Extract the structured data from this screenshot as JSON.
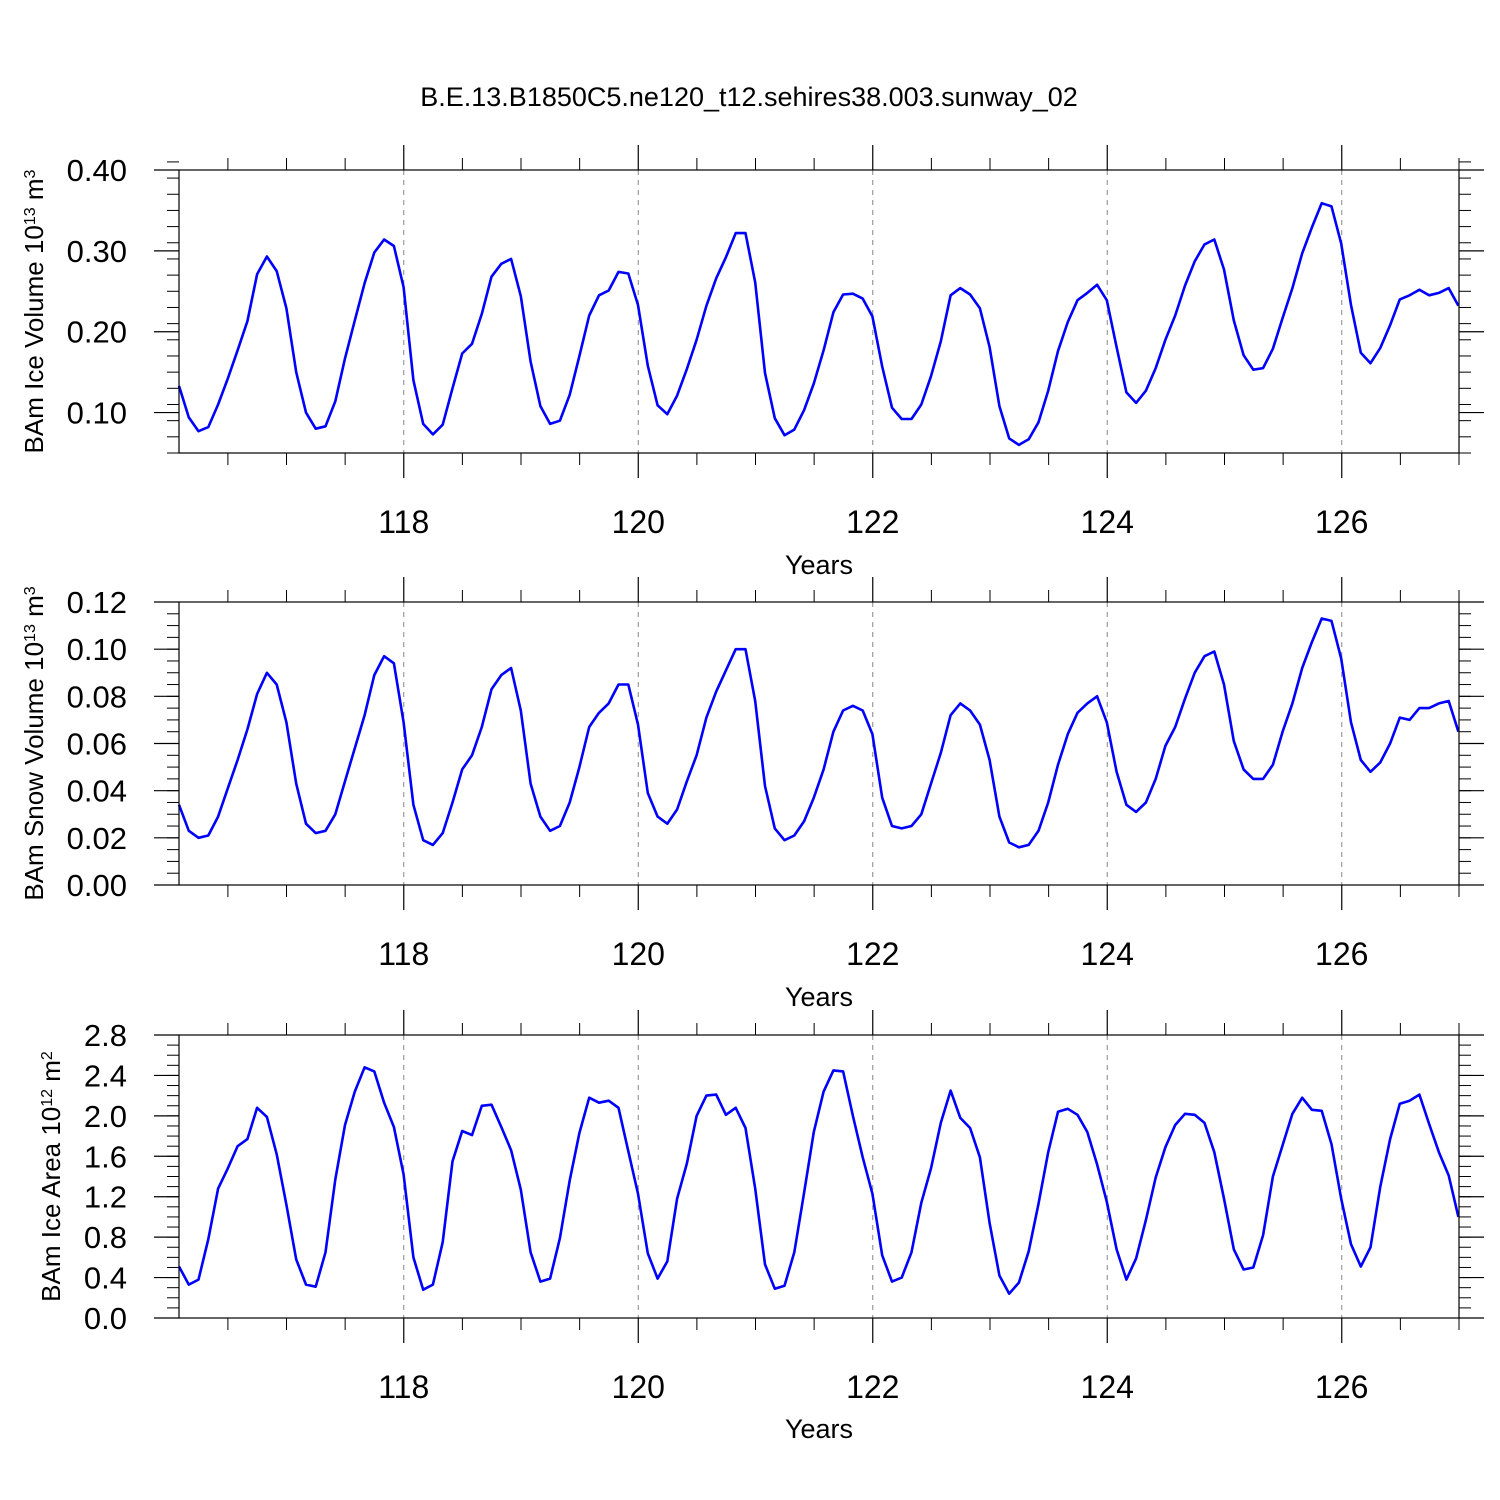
{
  "figure": {
    "title": "B.E.13.B1850C5.ne120_t12.sehires38.003.sunway_02"
  },
  "style": {
    "line_color": "#0000ff",
    "axis_color": "#000000",
    "grid_color": "#888888"
  },
  "chart_data": [
    {
      "type": "line",
      "id": "ice-volume",
      "title": "",
      "xlabel": "Years",
      "ylabel": "BAm Ice Volume 10",
      "ylabel_sup": "13",
      "ylabel_unit": " m",
      "ylabel_unit_sup": "3",
      "xlim": [
        116.083,
        127.0
      ],
      "ylim": [
        0.05,
        0.4
      ],
      "xticks": [
        118,
        120,
        122,
        124,
        126
      ],
      "xtick_labels": [
        "118",
        "120",
        "122",
        "124",
        "126"
      ],
      "yticks": [
        0.1,
        0.2,
        0.3,
        0.4
      ],
      "ytick_labels": [
        "0.10",
        "0.20",
        "0.30",
        "0.40"
      ],
      "y_minor_step": 0.02,
      "grid": "vertical dashed at major x ticks",
      "series": [
        {
          "x_start": 116.083,
          "x_step": 0.0833,
          "values": [
            0.133,
            0.094,
            0.077,
            0.082,
            0.11,
            0.142,
            0.177,
            0.213,
            0.271,
            0.293,
            0.275,
            0.229,
            0.15,
            0.1,
            0.08,
            0.083,
            0.114,
            0.167,
            0.214,
            0.26,
            0.298,
            0.314,
            0.306,
            0.255,
            0.14,
            0.086,
            0.073,
            0.085,
            0.13,
            0.173,
            0.185,
            0.222,
            0.268,
            0.284,
            0.29,
            0.244,
            0.163,
            0.108,
            0.086,
            0.09,
            0.122,
            0.17,
            0.22,
            0.245,
            0.251,
            0.274,
            0.272,
            0.233,
            0.158,
            0.109,
            0.098,
            0.121,
            0.154,
            0.19,
            0.232,
            0.266,
            0.292,
            0.322,
            0.322,
            0.261,
            0.149,
            0.093,
            0.072,
            0.079,
            0.103,
            0.136,
            0.177,
            0.224,
            0.246,
            0.247,
            0.241,
            0.219,
            0.157,
            0.106,
            0.092,
            0.092,
            0.11,
            0.145,
            0.188,
            0.245,
            0.254,
            0.246,
            0.229,
            0.181,
            0.108,
            0.068,
            0.06,
            0.067,
            0.088,
            0.127,
            0.176,
            0.212,
            0.239,
            0.248,
            0.258,
            0.239,
            0.181,
            0.125,
            0.112,
            0.127,
            0.155,
            0.19,
            0.22,
            0.257,
            0.287,
            0.308,
            0.314,
            0.277,
            0.214,
            0.171,
            0.153,
            0.155,
            0.179,
            0.217,
            0.254,
            0.297,
            0.329,
            0.359,
            0.355,
            0.309,
            0.233,
            0.174,
            0.161,
            0.18,
            0.208,
            0.24,
            0.245,
            0.252,
            0.245,
            0.248,
            0.254,
            0.232
          ]
        }
      ]
    },
    {
      "type": "line",
      "id": "snow-volume",
      "title": "",
      "xlabel": "Years",
      "ylabel": "BAm Snow Volume 10",
      "ylabel_sup": "13",
      "ylabel_unit": " m",
      "ylabel_unit_sup": "3",
      "xlim": [
        116.083,
        127.0
      ],
      "ylim": [
        0.0,
        0.12
      ],
      "xticks": [
        118,
        120,
        122,
        124,
        126
      ],
      "xtick_labels": [
        "118",
        "120",
        "122",
        "124",
        "126"
      ],
      "yticks": [
        0.0,
        0.02,
        0.04,
        0.06,
        0.08,
        0.1,
        0.12
      ],
      "ytick_labels": [
        "0.00",
        "0.02",
        "0.04",
        "0.06",
        "0.08",
        "0.10",
        "0.12"
      ],
      "y_minor_step": 0.005,
      "grid": "vertical dashed at major x ticks",
      "series": [
        {
          "x_start": 116.083,
          "x_step": 0.0833,
          "values": [
            0.034,
            0.023,
            0.02,
            0.021,
            0.029,
            0.041,
            0.053,
            0.066,
            0.081,
            0.09,
            0.085,
            0.069,
            0.043,
            0.026,
            0.022,
            0.023,
            0.03,
            0.044,
            0.058,
            0.072,
            0.089,
            0.097,
            0.094,
            0.069,
            0.034,
            0.019,
            0.017,
            0.022,
            0.035,
            0.049,
            0.055,
            0.067,
            0.083,
            0.089,
            0.092,
            0.074,
            0.043,
            0.029,
            0.023,
            0.025,
            0.035,
            0.05,
            0.067,
            0.073,
            0.077,
            0.085,
            0.085,
            0.068,
            0.039,
            0.029,
            0.026,
            0.032,
            0.044,
            0.055,
            0.071,
            0.082,
            0.091,
            0.1,
            0.1,
            0.078,
            0.042,
            0.024,
            0.019,
            0.021,
            0.027,
            0.037,
            0.049,
            0.065,
            0.074,
            0.076,
            0.074,
            0.064,
            0.037,
            0.025,
            0.024,
            0.025,
            0.03,
            0.043,
            0.056,
            0.072,
            0.077,
            0.074,
            0.068,
            0.053,
            0.029,
            0.018,
            0.016,
            0.017,
            0.023,
            0.035,
            0.051,
            0.064,
            0.073,
            0.077,
            0.08,
            0.069,
            0.048,
            0.034,
            0.031,
            0.035,
            0.045,
            0.059,
            0.067,
            0.079,
            0.09,
            0.097,
            0.099,
            0.085,
            0.061,
            0.049,
            0.045,
            0.045,
            0.051,
            0.065,
            0.077,
            0.092,
            0.103,
            0.113,
            0.112,
            0.096,
            0.069,
            0.053,
            0.048,
            0.052,
            0.06,
            0.071,
            0.07,
            0.075,
            0.075,
            0.077,
            0.078,
            0.065
          ]
        }
      ]
    },
    {
      "type": "line",
      "id": "ice-area",
      "title": "",
      "xlabel": "Years",
      "ylabel": "BAm Ice Area 10",
      "ylabel_sup": "12",
      "ylabel_unit": " m",
      "ylabel_unit_sup": "2",
      "xlim": [
        116.083,
        127.0
      ],
      "ylim": [
        0.0,
        2.8
      ],
      "xticks": [
        118,
        120,
        122,
        124,
        126
      ],
      "xtick_labels": [
        "118",
        "120",
        "122",
        "124",
        "126"
      ],
      "yticks": [
        0.0,
        0.4,
        0.8,
        1.2,
        1.6,
        2.0,
        2.4,
        2.8
      ],
      "ytick_labels": [
        "0.0",
        "0.4",
        "0.8",
        "1.2",
        "1.6",
        "2.0",
        "2.4",
        "2.8"
      ],
      "y_minor_step": 0.1,
      "grid": "vertical dashed at major x ticks",
      "series": [
        {
          "x_start": 116.083,
          "x_step": 0.0833,
          "values": [
            0.51,
            0.33,
            0.38,
            0.78,
            1.28,
            1.48,
            1.7,
            1.77,
            2.08,
            1.99,
            1.62,
            1.12,
            0.58,
            0.33,
            0.31,
            0.65,
            1.37,
            1.91,
            2.24,
            2.48,
            2.44,
            2.13,
            1.89,
            1.42,
            0.6,
            0.28,
            0.33,
            0.75,
            1.55,
            1.85,
            1.81,
            2.1,
            2.11,
            1.89,
            1.66,
            1.27,
            0.65,
            0.36,
            0.39,
            0.79,
            1.36,
            1.83,
            2.18,
            2.13,
            2.15,
            2.08,
            1.65,
            1.23,
            0.64,
            0.39,
            0.56,
            1.18,
            1.53,
            2.0,
            2.2,
            2.21,
            2.01,
            2.08,
            1.88,
            1.28,
            0.53,
            0.29,
            0.32,
            0.65,
            1.24,
            1.84,
            2.24,
            2.45,
            2.44,
            2.0,
            1.59,
            1.23,
            0.62,
            0.36,
            0.4,
            0.65,
            1.14,
            1.48,
            1.93,
            2.25,
            1.98,
            1.88,
            1.59,
            0.94,
            0.42,
            0.24,
            0.35,
            0.66,
            1.13,
            1.64,
            2.04,
            2.07,
            2.01,
            1.84,
            1.52,
            1.15,
            0.68,
            0.38,
            0.59,
            0.97,
            1.39,
            1.69,
            1.91,
            2.02,
            2.01,
            1.93,
            1.64,
            1.18,
            0.68,
            0.48,
            0.5,
            0.82,
            1.4,
            1.71,
            2.02,
            2.18,
            2.06,
            2.05,
            1.72,
            1.18,
            0.73,
            0.51,
            0.7,
            1.3,
            1.77,
            2.12,
            2.15,
            2.21,
            1.92,
            1.64,
            1.41,
            1.0
          ]
        }
      ]
    }
  ]
}
